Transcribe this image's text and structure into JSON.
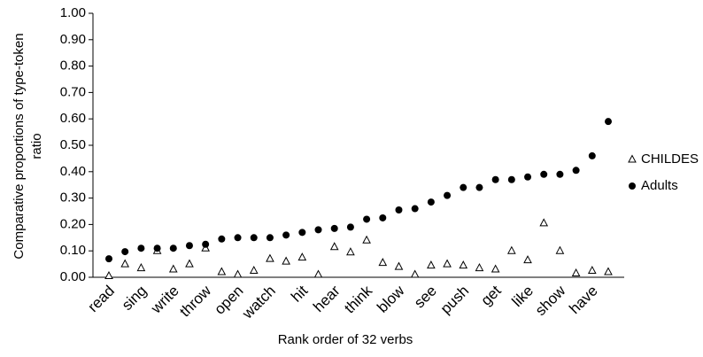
{
  "chart_data": {
    "type": "scatter",
    "x_label": "Rank order of 32 verbs",
    "y_label": [
      "Comparative proportions of type-token",
      "ratio"
    ],
    "categories": [
      "read",
      null,
      "sing",
      null,
      "write",
      null,
      "throw",
      null,
      "open",
      null,
      "watch",
      null,
      "hit",
      null,
      "hear",
      null,
      "think",
      null,
      "blow",
      null,
      "see",
      null,
      "push",
      null,
      "get",
      null,
      "like",
      null,
      "show",
      null,
      "have",
      null
    ],
    "series": [
      {
        "name": "CHILDES",
        "color": "#000000",
        "marker": "triangle",
        "values": [
          0.005,
          0.05,
          0.035,
          0.1,
          0.03,
          0.05,
          0.11,
          0.02,
          0.01,
          0.025,
          0.07,
          0.06,
          0.075,
          0.01,
          0.115,
          0.095,
          0.14,
          0.055,
          0.04,
          0.01,
          0.045,
          0.05,
          0.045,
          0.035,
          0.03,
          0.1,
          0.065,
          0.205,
          0.1,
          0.015,
          0.025,
          0.02
        ]
      },
      {
        "name": "Adults",
        "color": "#000000",
        "marker": "circle",
        "values": [
          0.07,
          0.097,
          0.11,
          0.11,
          0.11,
          0.12,
          0.125,
          0.145,
          0.15,
          0.15,
          0.15,
          0.16,
          0.17,
          0.18,
          0.185,
          0.19,
          0.22,
          0.225,
          0.255,
          0.26,
          0.285,
          0.31,
          0.34,
          0.34,
          0.37,
          0.37,
          0.38,
          0.39,
          0.39,
          0.405,
          0.46,
          0.59
        ]
      }
    ],
    "ylim": [
      0,
      1
    ],
    "yticks": [
      {
        "value": 0,
        "label": "0.00"
      },
      {
        "value": 0.1,
        "label": "0.10"
      },
      {
        "value": 0.2,
        "label": "0.20"
      },
      {
        "value": 0.3,
        "label": "0.30"
      },
      {
        "value": 0.4,
        "label": "0.40"
      },
      {
        "value": 0.5,
        "label": "0.50"
      },
      {
        "value": 0.6,
        "label": "0.60"
      },
      {
        "value": 0.7,
        "label": "0.70"
      },
      {
        "value": 0.8,
        "label": "0.80"
      },
      {
        "value": 0.9,
        "label": "0.90"
      },
      {
        "value": 1,
        "label": "1.00"
      }
    ],
    "grid": false,
    "legend": "right"
  }
}
